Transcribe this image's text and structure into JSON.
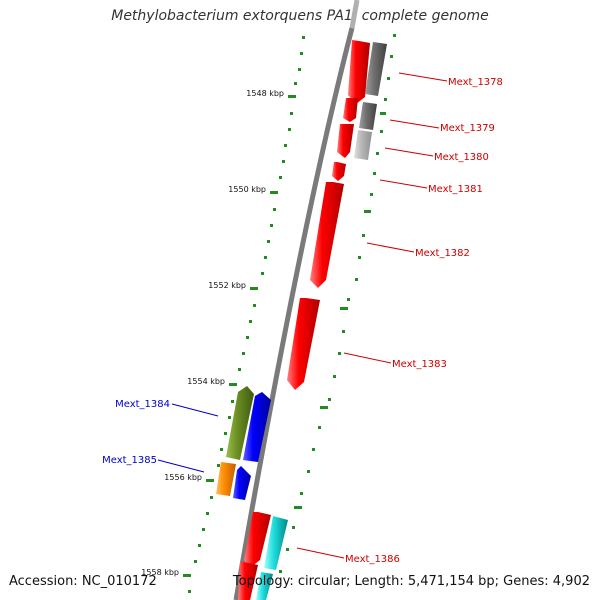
{
  "title": "Methylobacterium extorquens PA1, complete genome",
  "footer": {
    "accession": "Accession: NC_010172",
    "summary": "Topology: circular; Length: 5,471,154 bp; Genes: 4,902"
  },
  "scale_labels": [
    "1548 kbp",
    "1550 kbp",
    "1552 kbp",
    "1554 kbp",
    "1556 kbp",
    "1558 kbp"
  ],
  "genes_right": [
    "Mext_1378",
    "Mext_1379",
    "Mext_1380",
    "Mext_1381",
    "Mext_1382",
    "Mext_1383",
    "Mext_1386"
  ],
  "genes_left": [
    "Mext_1384",
    "Mext_1385"
  ],
  "colors": {
    "forward_gene": "#ff0000",
    "reverse_gene": "#0000ff",
    "grey_feature": "#707070",
    "light_grey_feature": "#b8b8b8",
    "olive_feature": "#6b8e23",
    "orange_feature": "#ff8c00",
    "cyan_feature": "#00cccc",
    "tick": "#228b22",
    "backbone": "#888888",
    "label_right": "#cc0000",
    "label_left": "#0000cc"
  }
}
